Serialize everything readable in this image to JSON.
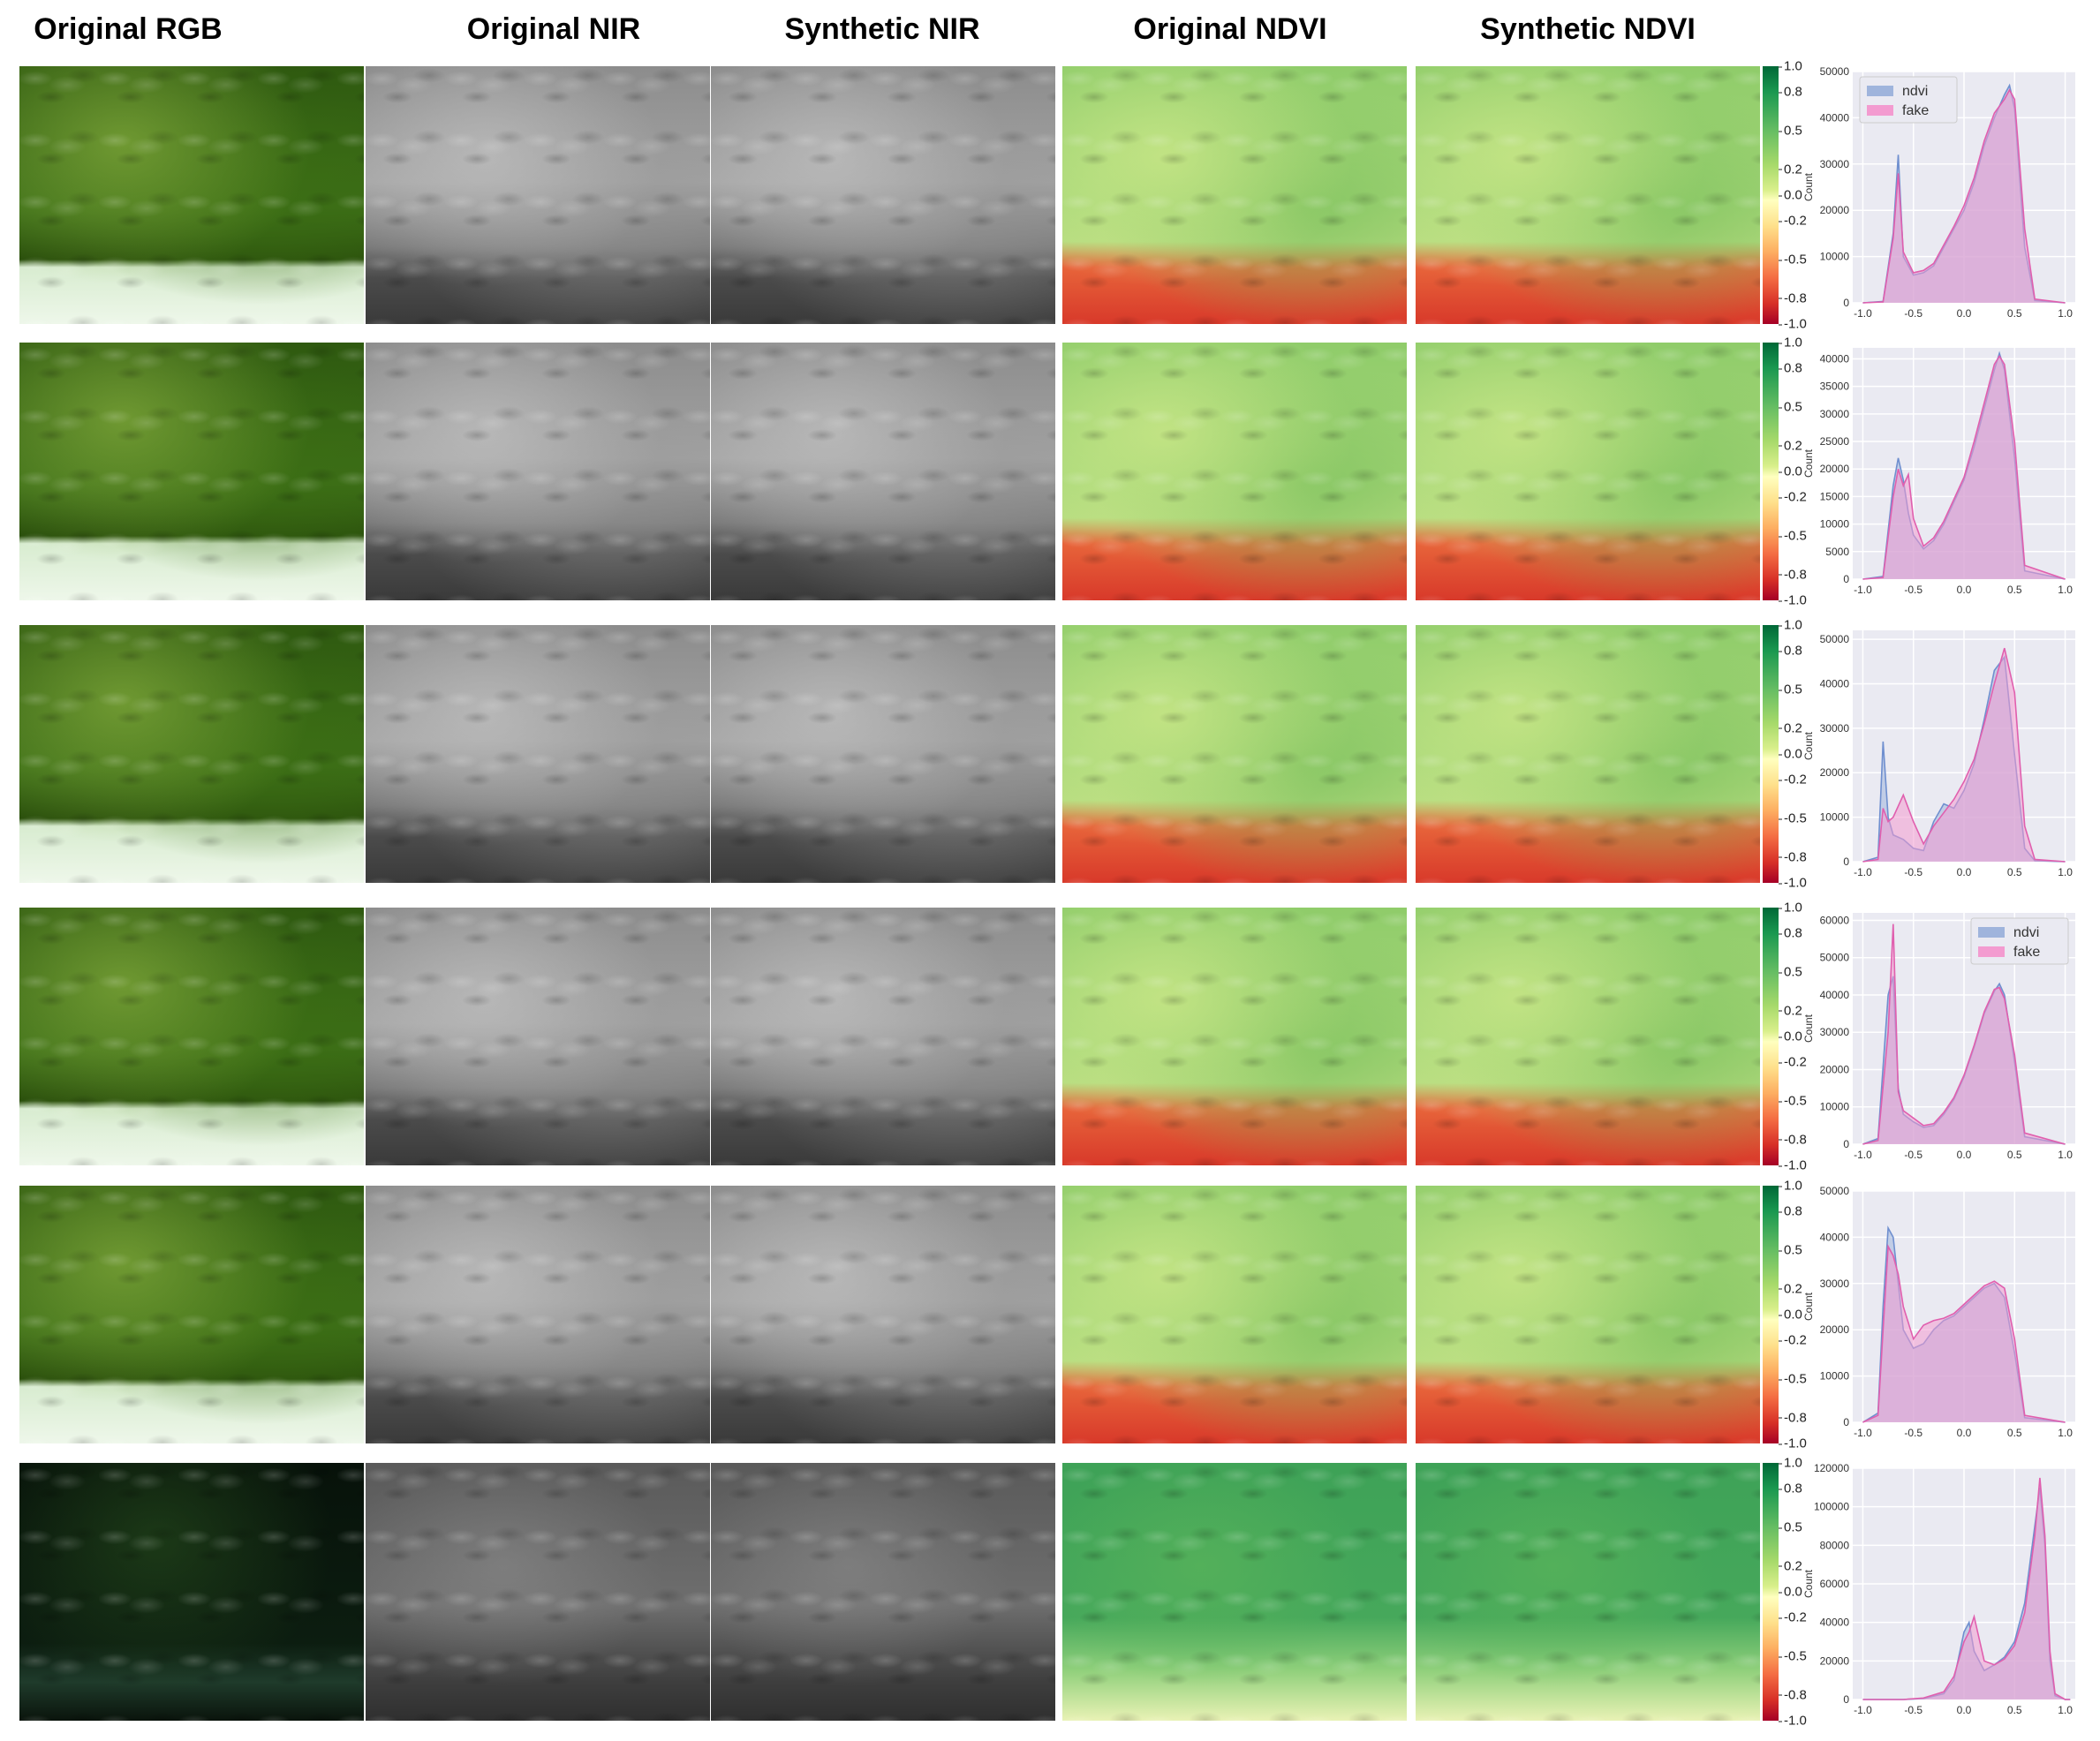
{
  "columns": [
    "Original RGB",
    "Original NIR",
    "Synthetic NIR",
    "Original NDVI",
    "Synthetic NDVI"
  ],
  "colorbar": {
    "ticks": [
      "1.0",
      "0.8",
      "0.5",
      "0.2",
      "0.0",
      "-0.2",
      "-0.5",
      "-0.8",
      "-1.0"
    ],
    "colors": [
      "#006837",
      "#1a9850",
      "#66bd63",
      "#a6d96a",
      "#d9ef8b",
      "#ffffbf",
      "#fee08b",
      "#fdae61",
      "#f46d43",
      "#d73027",
      "#a50026"
    ]
  },
  "series_colors": {
    "ndvi": "#9fb4dc",
    "fake": "#f39bd0"
  },
  "chart_data": [
    {
      "type": "area",
      "ylabel": "Count",
      "x_ticks": [
        "-1.0",
        "-0.5",
        "0.0",
        "0.5",
        "1.0"
      ],
      "y_ticks": [
        "0",
        "10000",
        "20000",
        "30000",
        "40000",
        "50000"
      ],
      "xlim": [
        -1.1,
        1.1
      ],
      "ylim": [
        0,
        50000
      ],
      "legend": "top-left",
      "x": [
        -1.0,
        -0.8,
        -0.7,
        -0.65,
        -0.6,
        -0.5,
        -0.4,
        -0.3,
        -0.2,
        -0.1,
        0.0,
        0.1,
        0.2,
        0.3,
        0.4,
        0.45,
        0.5,
        0.6,
        0.7,
        1.0
      ],
      "series": [
        {
          "name": "ndvi",
          "values": [
            0,
            300,
            15000,
            32000,
            10000,
            6000,
            6500,
            8000,
            12000,
            16000,
            20000,
            26000,
            34000,
            40000,
            45000,
            47000,
            42000,
            12000,
            500,
            0
          ]
        },
        {
          "name": "fake",
          "values": [
            0,
            200,
            14000,
            28000,
            11000,
            6500,
            7000,
            8500,
            12500,
            16500,
            21000,
            27000,
            35000,
            41000,
            44000,
            46000,
            44000,
            16000,
            800,
            0
          ]
        }
      ]
    },
    {
      "type": "area",
      "ylabel": "Count",
      "x_ticks": [
        "-1.0",
        "-0.5",
        "0.0",
        "0.5",
        "1.0"
      ],
      "y_ticks": [
        "0",
        "5000",
        "10000",
        "15000",
        "20000",
        "25000",
        "30000",
        "35000",
        "40000"
      ],
      "xlim": [
        -1.1,
        1.1
      ],
      "ylim": [
        0,
        42000
      ],
      "x": [
        -1.0,
        -0.8,
        -0.7,
        -0.65,
        -0.6,
        -0.55,
        -0.5,
        -0.4,
        -0.3,
        -0.2,
        -0.1,
        0.0,
        0.1,
        0.2,
        0.3,
        0.35,
        0.4,
        0.5,
        0.6,
        1.0
      ],
      "series": [
        {
          "name": "ndvi",
          "values": [
            0,
            500,
            17000,
            22000,
            18000,
            12000,
            8000,
            5500,
            7000,
            10000,
            14000,
            18000,
            24000,
            31000,
            38000,
            41000,
            38000,
            22000,
            1500,
            0
          ]
        },
        {
          "name": "fake",
          "values": [
            0,
            300,
            15000,
            20000,
            17000,
            19000,
            11000,
            6000,
            7500,
            10500,
            14500,
            18500,
            25000,
            32000,
            39000,
            40500,
            39000,
            25000,
            2500,
            0
          ]
        }
      ]
    },
    {
      "type": "area",
      "ylabel": "Count",
      "x_ticks": [
        "-1.0",
        "-0.5",
        "0.0",
        "0.5",
        "1.0"
      ],
      "y_ticks": [
        "0",
        "10000",
        "20000",
        "30000",
        "40000",
        "50000"
      ],
      "xlim": [
        -1.1,
        1.1
      ],
      "ylim": [
        0,
        52000
      ],
      "x": [
        -1.0,
        -0.85,
        -0.8,
        -0.75,
        -0.7,
        -0.6,
        -0.5,
        -0.4,
        -0.3,
        -0.2,
        -0.1,
        0.0,
        0.1,
        0.2,
        0.3,
        0.4,
        0.5,
        0.6,
        0.7,
        1.0
      ],
      "series": [
        {
          "name": "ndvi",
          "values": [
            0,
            1000,
            27000,
            10000,
            6000,
            5000,
            3000,
            2500,
            9000,
            13000,
            12000,
            16000,
            22000,
            32000,
            43000,
            46000,
            24000,
            3000,
            200,
            0
          ]
        },
        {
          "name": "fake",
          "values": [
            0,
            500,
            12000,
            9000,
            10000,
            15000,
            9000,
            4000,
            8000,
            11000,
            14000,
            18000,
            23000,
            31000,
            40000,
            48000,
            38000,
            8000,
            500,
            0
          ]
        }
      ]
    },
    {
      "type": "area",
      "ylabel": "Count",
      "x_ticks": [
        "-1.0",
        "-0.5",
        "0.0",
        "0.5",
        "1.0"
      ],
      "y_ticks": [
        "0",
        "10000",
        "20000",
        "30000",
        "40000",
        "50000",
        "60000"
      ],
      "xlim": [
        -1.1,
        1.1
      ],
      "ylim": [
        0,
        62000
      ],
      "legend": "top-right",
      "x": [
        -1.0,
        -0.85,
        -0.75,
        -0.7,
        -0.65,
        -0.6,
        -0.5,
        -0.4,
        -0.3,
        -0.2,
        -0.1,
        0.0,
        0.1,
        0.2,
        0.3,
        0.35,
        0.4,
        0.5,
        0.6,
        1.0
      ],
      "series": [
        {
          "name": "ndvi",
          "values": [
            0,
            1500,
            40000,
            45000,
            15000,
            8000,
            6000,
            4500,
            5000,
            8000,
            12000,
            18000,
            26000,
            35000,
            41000,
            43000,
            40000,
            22000,
            2000,
            0
          ]
        },
        {
          "name": "fake",
          "values": [
            0,
            1000,
            30000,
            59000,
            14000,
            9000,
            7000,
            5000,
            5500,
            8500,
            12500,
            18500,
            26500,
            35500,
            41500,
            42000,
            39000,
            24000,
            3000,
            0
          ]
        }
      ]
    },
    {
      "type": "area",
      "ylabel": "Count",
      "x_ticks": [
        "-1.0",
        "-0.5",
        "0.0",
        "0.5",
        "1.0"
      ],
      "y_ticks": [
        "0",
        "10000",
        "20000",
        "30000",
        "40000",
        "50000"
      ],
      "xlim": [
        -1.1,
        1.1
      ],
      "ylim": [
        0,
        50000
      ],
      "x": [
        -1.0,
        -0.85,
        -0.8,
        -0.75,
        -0.7,
        -0.65,
        -0.6,
        -0.5,
        -0.4,
        -0.3,
        -0.2,
        -0.1,
        0.0,
        0.1,
        0.2,
        0.3,
        0.4,
        0.5,
        0.6,
        1.0
      ],
      "series": [
        {
          "name": "ndvi",
          "values": [
            0,
            2000,
            25000,
            42000,
            40000,
            30000,
            20000,
            16000,
            17000,
            20000,
            22000,
            23000,
            25000,
            27000,
            29000,
            30000,
            27000,
            15000,
            1000,
            0
          ]
        },
        {
          "name": "fake",
          "values": [
            0,
            1500,
            20000,
            38000,
            36000,
            32000,
            25000,
            18000,
            21000,
            22000,
            22500,
            23500,
            25500,
            27500,
            29500,
            30500,
            29000,
            18000,
            1500,
            0
          ]
        }
      ]
    },
    {
      "type": "area",
      "ylabel": "Count",
      "x_ticks": [
        "-1.0",
        "-0.5",
        "0.0",
        "0.5",
        "1.0"
      ],
      "y_ticks": [
        "0",
        "20000",
        "40000",
        "60000",
        "80000",
        "100000",
        "120000"
      ],
      "xlim": [
        -1.1,
        1.1
      ],
      "ylim": [
        0,
        120000
      ],
      "x": [
        -1.0,
        -0.6,
        -0.4,
        -0.2,
        -0.1,
        0.0,
        0.05,
        0.1,
        0.2,
        0.3,
        0.4,
        0.5,
        0.6,
        0.7,
        0.75,
        0.8,
        0.85,
        0.9,
        1.0,
        1.05
      ],
      "series": [
        {
          "name": "ndvi",
          "values": [
            0,
            0,
            500,
            3000,
            10000,
            35000,
            40000,
            25000,
            15000,
            18000,
            22000,
            30000,
            50000,
            90000,
            110000,
            80000,
            20000,
            2000,
            0,
            0
          ]
        },
        {
          "name": "fake",
          "values": [
            0,
            0,
            800,
            4000,
            12000,
            30000,
            35000,
            43000,
            20000,
            18000,
            21000,
            28000,
            45000,
            85000,
            115000,
            85000,
            25000,
            3000,
            0,
            0
          ]
        }
      ]
    }
  ]
}
